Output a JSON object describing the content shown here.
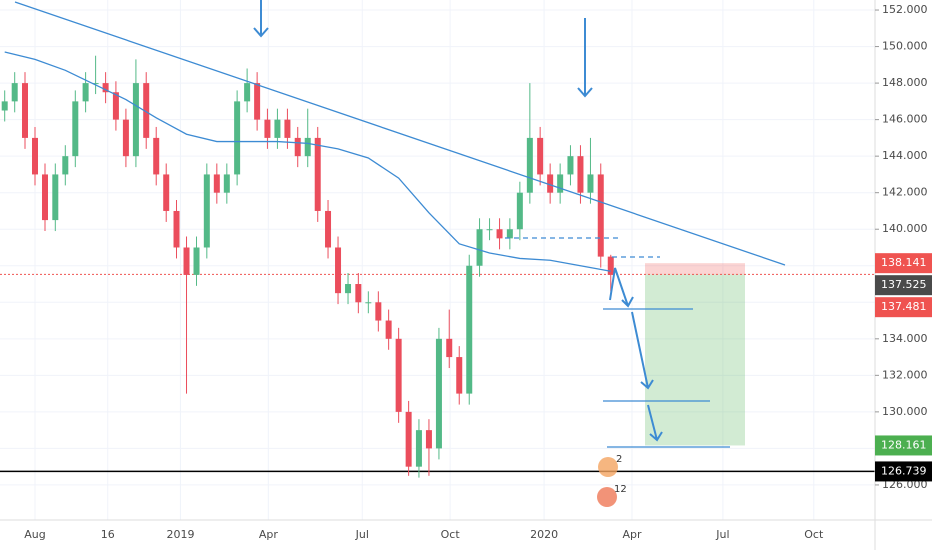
{
  "chart_data": {
    "type": "candlestick",
    "up_color": "#53b987",
    "down_color": "#eb4d5c",
    "xlim": [
      -1.155,
      27.72
    ],
    "ylim": [
      124.08,
      152.55
    ],
    "xticks": [
      {
        "value": 0,
        "label": "Aug"
      },
      {
        "value": 2.4,
        "label": "16"
      },
      {
        "value": 4.8,
        "label": "2019"
      },
      {
        "value": 7.7,
        "label": "Apr"
      },
      {
        "value": 10.8,
        "label": "Jul"
      },
      {
        "value": 13.7,
        "label": "Oct"
      },
      {
        "value": 16.8,
        "label": "2020"
      },
      {
        "value": 19.7,
        "label": "Apr"
      },
      {
        "value": 22.7,
        "label": "Jul"
      },
      {
        "value": 25.7,
        "label": "Oct"
      }
    ],
    "yticks": [
      {
        "value": 126,
        "label": "126.000"
      },
      {
        "value": 128,
        "label": "128.000"
      },
      {
        "value": 130,
        "label": "130.000"
      },
      {
        "value": 132,
        "label": "132.000"
      },
      {
        "value": 134,
        "label": "134.000"
      },
      {
        "value": 136,
        "label": "136.000"
      },
      {
        "value": 138,
        "label": "138.000"
      },
      {
        "value": 140,
        "label": "140.000"
      },
      {
        "value": 142,
        "label": "142.000"
      },
      {
        "value": 144,
        "label": "144.000"
      },
      {
        "value": 146,
        "label": "146.000"
      },
      {
        "value": 148,
        "label": "148.000"
      },
      {
        "value": 150,
        "label": "150.000"
      },
      {
        "value": 152,
        "label": "152.000"
      }
    ],
    "x": [
      -1,
      -0.67,
      -0.33,
      0,
      0.33,
      0.67,
      1,
      1.33,
      1.67,
      2,
      2.33,
      2.67,
      3,
      3.33,
      3.67,
      4,
      4.33,
      4.67,
      5,
      5.33,
      5.67,
      6,
      6.33,
      6.67,
      7,
      7.33,
      7.67,
      8,
      8.33,
      8.67,
      9,
      9.33,
      9.67,
      10,
      10.33,
      10.67,
      11,
      11.33,
      11.67,
      12,
      12.33,
      12.67,
      13,
      13.33,
      13.67,
      14,
      14.33,
      14.67,
      15,
      15.33,
      15.67,
      16,
      16.33,
      16.67,
      17,
      17.33,
      17.67,
      18,
      18.33,
      18.67,
      19
    ],
    "open": [
      146.5,
      147,
      148,
      145,
      143,
      140.5,
      143,
      144,
      147,
      148,
      148,
      147.5,
      146,
      144,
      148,
      145,
      143,
      141,
      139,
      137.5,
      139,
      143,
      142,
      143,
      147,
      148,
      146,
      145,
      146,
      145,
      144,
      145,
      141,
      139,
      136.5,
      137,
      136,
      136,
      135,
      134,
      130,
      127,
      129,
      128,
      134,
      133,
      131,
      138,
      140,
      140,
      139.5,
      140,
      142,
      145,
      143,
      142,
      143,
      144,
      142,
      143,
      138.5
    ],
    "high": [
      147.6,
      148.6,
      148.6,
      145.6,
      143.6,
      143.6,
      144.6,
      147.6,
      148.6,
      149.5,
      148.6,
      148.1,
      146.6,
      149.3,
      148.6,
      145.6,
      143.6,
      141.6,
      139.6,
      139.6,
      143.6,
      143.6,
      143.6,
      147.6,
      148.8,
      148.6,
      146.6,
      146.6,
      146.6,
      145.6,
      146.6,
      145.6,
      141.6,
      139.6,
      137.6,
      137.6,
      136.6,
      136.6,
      135.6,
      134.6,
      130.6,
      129.6,
      129.6,
      134.6,
      135.6,
      133.6,
      138.6,
      140.6,
      140.6,
      140.6,
      140.6,
      142.6,
      148,
      145.6,
      143.6,
      143.6,
      144.6,
      144.6,
      145,
      143.6,
      138.6
    ],
    "low": [
      145.9,
      146.4,
      144.4,
      142.4,
      139.9,
      139.9,
      142.4,
      143.4,
      146.4,
      147.4,
      146.9,
      145.4,
      143.4,
      143.4,
      144.4,
      142.4,
      140.4,
      138.4,
      131,
      136.9,
      138.4,
      141.4,
      141.4,
      142.4,
      146.4,
      145.4,
      144.4,
      144.4,
      144.4,
      143.4,
      143.4,
      140.4,
      138.4,
      135.9,
      135.9,
      135.4,
      135.4,
      134.4,
      133.4,
      129.4,
      126.5,
      126.4,
      126.5,
      127.4,
      132.4,
      130.4,
      130.4,
      137.4,
      139.4,
      138.9,
      138.9,
      139.4,
      141.4,
      142.4,
      141.4,
      141.4,
      142.4,
      141.4,
      141.4,
      137.9,
      136.6
    ],
    "close": [
      147,
      148,
      145,
      143,
      140.5,
      143,
      144,
      147,
      148,
      148,
      147.5,
      146,
      144,
      148,
      145,
      143,
      141,
      139,
      137.5,
      139,
      143,
      142,
      143,
      147,
      148,
      146,
      145,
      146,
      145,
      144,
      145,
      141,
      139,
      136.5,
      137,
      136,
      136,
      135,
      134,
      130,
      127,
      129,
      128,
      134,
      133,
      131,
      138,
      140,
      140,
      139.5,
      140,
      142,
      145,
      143,
      142,
      143,
      144,
      142,
      143,
      138.5,
      137.5
    ],
    "moving_average": {
      "color": "#3d8bd3",
      "x": [
        -1,
        0,
        1,
        2,
        3,
        4,
        5,
        6,
        7,
        8,
        9,
        10,
        11,
        12,
        13,
        14,
        15,
        16,
        17,
        18,
        19
      ],
      "values": [
        149.7,
        149.3,
        148.7,
        147.9,
        147.1,
        146.1,
        145.2,
        144.8,
        144.8,
        144.8,
        144.7,
        144.4,
        143.9,
        142.8,
        140.9,
        139.2,
        138.7,
        138.4,
        138.3,
        138,
        137.7
      ]
    },
    "price_labels": [
      {
        "value": 138.141,
        "color": "#ef5350"
      },
      {
        "value": 137.525,
        "color": "#4a4a4a"
      },
      {
        "value": 137.481,
        "color": "#ef5350"
      },
      {
        "value": 128.161,
        "color": "#4caf50"
      },
      {
        "value": 126.739,
        "color": "#000000"
      }
    ],
    "events": [
      "2",
      "12"
    ]
  }
}
